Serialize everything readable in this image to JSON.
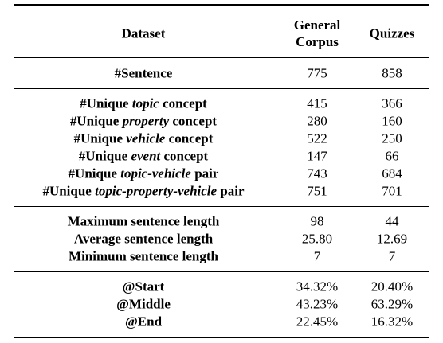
{
  "table": {
    "header": [
      "Dataset",
      "General Corpus",
      "Quizzes"
    ],
    "groups": [
      [
        {
          "label": [
            "#Sentence"
          ],
          "cells": [
            "775",
            "858"
          ]
        }
      ],
      [
        {
          "label": [
            "#Unique ",
            "topic",
            " concept"
          ],
          "cells": [
            "415",
            "366"
          ]
        },
        {
          "label": [
            "#Unique ",
            "property",
            " concept"
          ],
          "cells": [
            "280",
            "160"
          ]
        },
        {
          "label": [
            "#Unique ",
            "vehicle",
            " concept"
          ],
          "cells": [
            "522",
            "250"
          ]
        },
        {
          "label": [
            "#Unique ",
            "event",
            " concept"
          ],
          "cells": [
            "147",
            "66"
          ]
        },
        {
          "label": [
            "#Unique ",
            "topic-vehicle",
            " pair"
          ],
          "cells": [
            "743",
            "684"
          ]
        },
        {
          "label": [
            "#Unique ",
            "topic-property-vehicle",
            " pair"
          ],
          "cells": [
            "751",
            "701"
          ]
        }
      ],
      [
        {
          "label": [
            "Maximum sentence length"
          ],
          "cells": [
            "98",
            "44"
          ]
        },
        {
          "label": [
            "Average sentence length"
          ],
          "cells": [
            "25.80",
            "12.69"
          ]
        },
        {
          "label": [
            "Minimum sentence length"
          ],
          "cells": [
            "7",
            "7"
          ]
        }
      ],
      [
        {
          "label": [
            "@Start"
          ],
          "cells": [
            "34.32%",
            "20.40%"
          ]
        },
        {
          "label": [
            "@Middle"
          ],
          "cells": [
            "43.23%",
            "63.29%"
          ]
        },
        {
          "label": [
            "@End"
          ],
          "cells": [
            "22.45%",
            "16.32%"
          ]
        }
      ]
    ]
  }
}
